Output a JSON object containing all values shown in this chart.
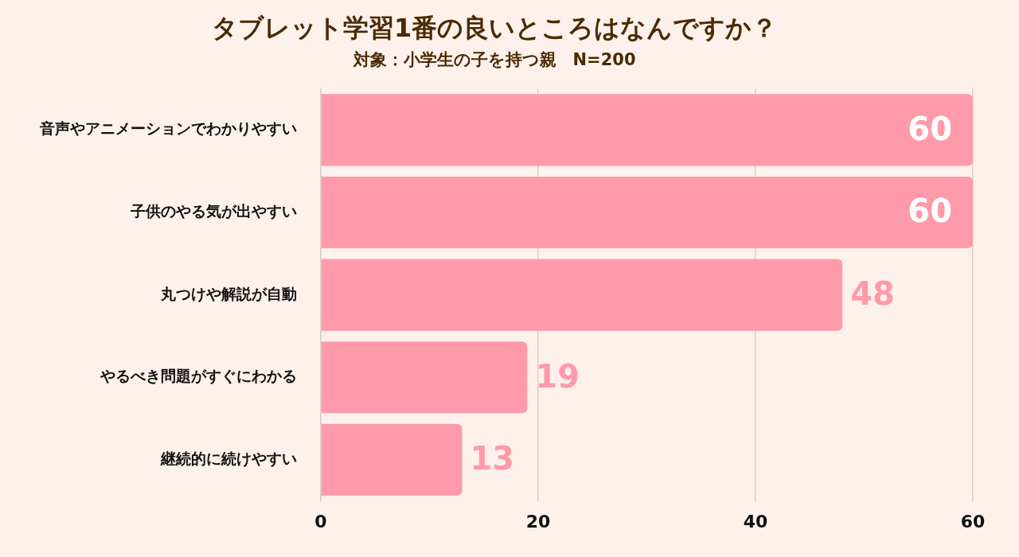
{
  "chart_data": {
    "type": "bar",
    "orientation": "horizontal",
    "title": "タブレット学習1番の良いところはなんですか？",
    "subtitle": "対象：小学生の子を持つ親　N=200",
    "categories": [
      "音声やアニメーションでわかりやすい",
      "子供のやる気が出やすい",
      "丸つけや解説が自動",
      "やるべき問題がすぐにわかる",
      "継続的に続けやすい"
    ],
    "values": [
      60,
      60,
      48,
      19,
      13
    ],
    "color": "#ff9aab",
    "xlim": [
      0,
      60
    ],
    "xticks": [
      0,
      20,
      40,
      60
    ],
    "grid": "x",
    "data_labels": true,
    "legend": false
  }
}
